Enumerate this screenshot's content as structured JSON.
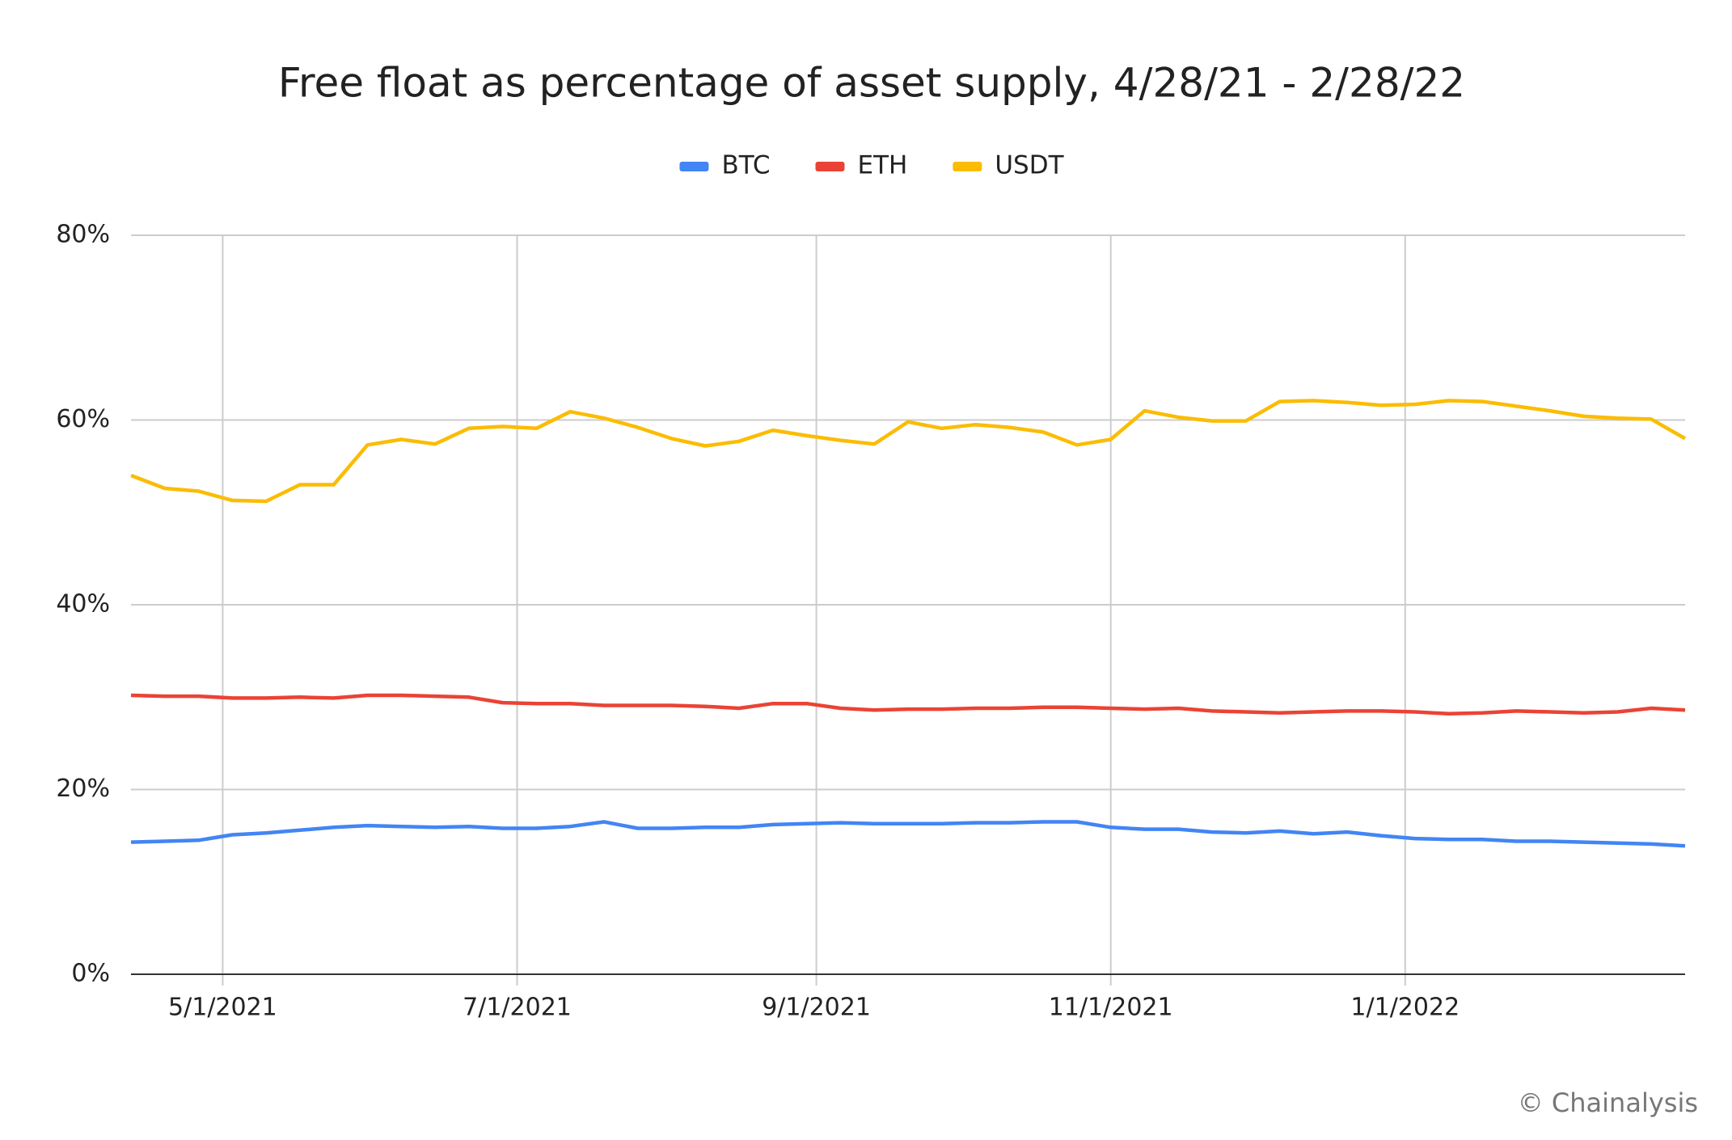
{
  "chart_data": {
    "type": "line",
    "title": "Free float as percentage of asset supply, 4/28/21 -  2/28/22",
    "credit": "© Chainalysis",
    "x": [
      "4/12/2021",
      "4/19/2021",
      "4/26/2021",
      "5/3/2021",
      "5/10/2021",
      "5/17/2021",
      "5/24/2021",
      "5/31/2021",
      "6/7/2021",
      "6/14/2021",
      "6/21/2021",
      "6/28/2021",
      "7/5/2021",
      "7/12/2021",
      "7/19/2021",
      "7/26/2021",
      "8/2/2021",
      "8/9/2021",
      "8/16/2021",
      "8/23/2021",
      "8/30/2021",
      "9/6/2021",
      "9/13/2021",
      "9/20/2021",
      "9/27/2021",
      "10/4/2021",
      "10/11/2021",
      "10/18/2021",
      "10/25/2021",
      "11/1/2021",
      "11/8/2021",
      "11/15/2021",
      "11/22/2021",
      "11/29/2021",
      "12/6/2021",
      "12/13/2021",
      "12/20/2021",
      "12/27/2021",
      "1/3/2022",
      "1/10/2022",
      "1/17/2022",
      "1/24/2022",
      "1/31/2022",
      "2/7/2022",
      "2/14/2022",
      "2/21/2022",
      "2/28/2022"
    ],
    "series": [
      {
        "name": "BTC",
        "color": "#4285f4",
        "values": [
          14.3,
          14.4,
          14.5,
          15.1,
          15.3,
          15.6,
          15.9,
          16.1,
          16.0,
          15.9,
          16.0,
          15.8,
          15.8,
          16.0,
          16.5,
          15.8,
          15.8,
          15.9,
          15.9,
          16.2,
          16.3,
          16.4,
          16.3,
          16.3,
          16.3,
          16.4,
          16.4,
          16.5,
          16.5,
          15.9,
          15.7,
          15.7,
          15.4,
          15.3,
          15.5,
          15.2,
          15.4,
          15.0,
          14.7,
          14.6,
          14.6,
          14.4,
          14.4,
          14.3,
          14.2,
          14.1,
          13.9
        ]
      },
      {
        "name": "ETH",
        "color": "#ea4335",
        "values": [
          30.2,
          30.1,
          30.1,
          29.9,
          29.9,
          30.0,
          29.9,
          30.2,
          30.2,
          30.1,
          30.0,
          29.4,
          29.3,
          29.3,
          29.1,
          29.1,
          29.1,
          29.0,
          28.8,
          29.3,
          29.3,
          28.8,
          28.6,
          28.7,
          28.7,
          28.8,
          28.8,
          28.9,
          28.9,
          28.8,
          28.7,
          28.8,
          28.5,
          28.4,
          28.3,
          28.4,
          28.5,
          28.5,
          28.4,
          28.2,
          28.3,
          28.5,
          28.4,
          28.3,
          28.4,
          28.8,
          28.6
        ]
      },
      {
        "name": "USDT",
        "color": "#fbbc04",
        "values": [
          54.0,
          52.6,
          52.3,
          51.3,
          51.2,
          53.0,
          53.0,
          57.3,
          57.9,
          57.4,
          59.1,
          59.3,
          59.1,
          60.9,
          60.2,
          59.2,
          58.0,
          57.2,
          57.7,
          58.9,
          58.3,
          57.8,
          57.4,
          59.8,
          59.1,
          59.5,
          59.2,
          58.7,
          57.3,
          57.9,
          61.0,
          60.3,
          59.9,
          59.9,
          62.0,
          62.1,
          61.9,
          61.6,
          61.7,
          62.1,
          62.0,
          61.5,
          61.0,
          60.4,
          60.2,
          60.1,
          58.0
        ]
      }
    ],
    "xlim": [
      "4/12/2021",
      "2/28/2022"
    ],
    "xticks": [
      "5/1/2021",
      "7/1/2021",
      "9/1/2021",
      "11/1/2021",
      "1/1/2022"
    ],
    "ylim": [
      0,
      80
    ],
    "yticks": [
      {
        "value": 0,
        "label": "0%"
      },
      {
        "value": 20,
        "label": "20%"
      },
      {
        "value": 40,
        "label": "40%"
      },
      {
        "value": 60,
        "label": "60%"
      },
      {
        "value": 80,
        "label": "80%"
      }
    ],
    "grid": true,
    "legend": "top"
  }
}
